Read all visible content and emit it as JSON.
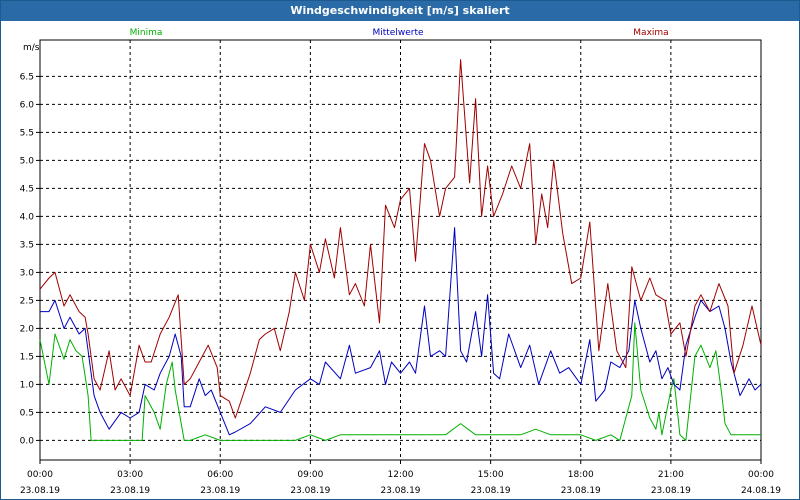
{
  "window": {
    "title": "Windgeschwindigkeit [m/s] skaliert"
  },
  "colors": {
    "minima": "#00b000",
    "mittelwerte": "#0000c0",
    "maxima": "#a00000",
    "grid": "#000000"
  },
  "chart_data": {
    "type": "line",
    "title": "Windgeschwindigkeit [m/s] skaliert",
    "ylabel": "m/s",
    "ylim": [
      -0.35,
      7.15
    ],
    "yticks": [
      0.0,
      0.5,
      1.0,
      1.5,
      2.0,
      2.5,
      3.0,
      3.5,
      4.0,
      4.5,
      5.0,
      5.5,
      6.0,
      6.5
    ],
    "ytick_labels": [
      "0.0",
      "0.5",
      "1.0",
      "1.5",
      "2.0",
      "2.5",
      "3.0",
      "3.5",
      "4.0",
      "4.5",
      "5.0",
      "5.5",
      "6.0",
      "6.5"
    ],
    "xlim": [
      0,
      24
    ],
    "xticks": [
      0,
      3,
      6,
      9,
      12,
      15,
      18,
      21,
      24
    ],
    "xtick_times": [
      "00:00",
      "03:00",
      "06:00",
      "09:00",
      "12:00",
      "15:00",
      "18:00",
      "21:00",
      "00:00"
    ],
    "xtick_dates": [
      "23.08.19",
      "23.08.19",
      "23.08.19",
      "23.08.19",
      "23.08.19",
      "23.08.19",
      "23.08.19",
      "23.08.19",
      "24.08.19"
    ],
    "grid": true,
    "legend_position": "top",
    "series": [
      {
        "name": "Minima",
        "x": [
          0,
          0.3,
          0.5,
          0.8,
          1.0,
          1.2,
          1.4,
          1.6,
          1.7,
          1.8,
          2.0,
          2.5,
          3.0,
          3.4,
          3.5,
          3.8,
          4.0,
          4.2,
          4.4,
          4.5,
          4.8,
          5.0,
          5.5,
          6.0,
          6.2,
          7.0,
          7.5,
          8.0,
          8.5,
          9.0,
          9.5,
          10.0,
          11.0,
          12.0,
          13.0,
          13.5,
          14.0,
          14.5,
          15.0,
          16.0,
          16.5,
          17.0,
          18.0,
          18.5,
          19.0,
          19.3,
          19.7,
          19.8,
          20.0,
          20.3,
          20.5,
          20.6,
          20.7,
          21.0,
          21.1,
          21.2,
          21.3,
          21.5,
          21.8,
          22.0,
          22.3,
          22.5,
          22.7,
          22.8,
          23.0,
          24.0
        ],
        "values": [
          1.8,
          1.0,
          1.9,
          1.45,
          1.8,
          1.6,
          1.5,
          0.8,
          0.0,
          0.0,
          0.0,
          0.0,
          0.0,
          0.0,
          0.8,
          0.5,
          0.2,
          1.0,
          1.4,
          0.9,
          0.0,
          0.0,
          0.1,
          0.0,
          0.0,
          0.0,
          0.0,
          0.0,
          0.0,
          0.1,
          0.0,
          0.1,
          0.1,
          0.1,
          0.1,
          0.1,
          0.3,
          0.1,
          0.1,
          0.1,
          0.2,
          0.1,
          0.1,
          0.0,
          0.1,
          0.0,
          0.8,
          2.1,
          0.9,
          0.4,
          0.2,
          0.5,
          0.1,
          0.9,
          1.1,
          0.6,
          0.1,
          0.0,
          1.5,
          1.7,
          1.3,
          1.6,
          0.8,
          0.3,
          0.1,
          0.1
        ]
      },
      {
        "name": "Mittelwerte",
        "x": [
          0,
          0.3,
          0.5,
          0.8,
          1.0,
          1.3,
          1.5,
          1.6,
          1.8,
          2.0,
          2.3,
          2.7,
          3.0,
          3.3,
          3.5,
          3.8,
          4.0,
          4.3,
          4.5,
          4.7,
          4.8,
          5.0,
          5.3,
          5.5,
          5.7,
          6.0,
          6.3,
          6.5,
          7.0,
          7.5,
          8.0,
          8.5,
          9.0,
          9.3,
          9.5,
          10.0,
          10.3,
          10.5,
          11.0,
          11.3,
          11.5,
          11.7,
          12.0,
          12.3,
          12.5,
          12.8,
          13.0,
          13.3,
          13.5,
          13.8,
          14.0,
          14.2,
          14.5,
          14.7,
          14.9,
          15.1,
          15.3,
          15.6,
          16.0,
          16.3,
          16.6,
          17.0,
          17.3,
          17.6,
          18.0,
          18.3,
          18.5,
          18.8,
          19.0,
          19.3,
          19.6,
          19.8,
          20.0,
          20.3,
          20.5,
          20.7,
          20.9,
          21.1,
          21.3,
          21.5,
          21.8,
          22.0,
          22.3,
          22.6,
          22.8,
          23.0,
          23.3,
          23.6,
          23.8,
          24.0
        ],
        "values": [
          2.3,
          2.3,
          2.5,
          2.0,
          2.2,
          1.9,
          2.0,
          1.6,
          0.8,
          0.5,
          0.2,
          0.5,
          0.4,
          0.5,
          1.0,
          0.9,
          1.2,
          1.5,
          1.9,
          1.5,
          0.6,
          0.6,
          1.1,
          0.8,
          0.9,
          0.5,
          0.1,
          0.15,
          0.3,
          0.6,
          0.5,
          0.9,
          1.1,
          1.0,
          1.4,
          1.1,
          1.7,
          1.2,
          1.3,
          1.6,
          1.0,
          1.4,
          1.2,
          1.4,
          1.2,
          2.4,
          1.5,
          1.6,
          1.5,
          3.8,
          1.6,
          1.4,
          2.3,
          1.5,
          2.6,
          1.2,
          1.1,
          1.9,
          1.3,
          1.7,
          1.0,
          1.6,
          1.2,
          1.3,
          1.0,
          1.8,
          0.7,
          0.9,
          1.4,
          1.3,
          1.6,
          2.5,
          2.0,
          1.4,
          1.6,
          1.1,
          1.3,
          1.0,
          0.9,
          1.7,
          2.2,
          2.5,
          2.3,
          2.4,
          2.0,
          1.4,
          0.8,
          1.1,
          0.9,
          1.0
        ]
      },
      {
        "name": "Maxima",
        "x": [
          0,
          0.3,
          0.5,
          0.8,
          1.0,
          1.3,
          1.5,
          1.6,
          1.8,
          2.0,
          2.3,
          2.5,
          2.7,
          3.0,
          3.3,
          3.5,
          3.7,
          4.0,
          4.3,
          4.6,
          4.8,
          5.0,
          5.3,
          5.6,
          5.9,
          6.0,
          6.3,
          6.5,
          7.0,
          7.3,
          7.5,
          7.8,
          8.0,
          8.3,
          8.5,
          8.8,
          9.0,
          9.3,
          9.5,
          9.8,
          10.0,
          10.3,
          10.5,
          10.8,
          11.0,
          11.3,
          11.5,
          11.8,
          12.0,
          12.3,
          12.5,
          12.8,
          13.0,
          13.3,
          13.5,
          13.8,
          14.0,
          14.3,
          14.5,
          14.7,
          14.9,
          15.1,
          15.4,
          15.7,
          16.0,
          16.3,
          16.5,
          16.7,
          16.9,
          17.1,
          17.4,
          17.7,
          18.0,
          18.3,
          18.6,
          18.9,
          19.2,
          19.5,
          19.7,
          20.0,
          20.3,
          20.5,
          20.8,
          21.0,
          21.3,
          21.5,
          21.8,
          22.0,
          22.3,
          22.6,
          22.9,
          23.1,
          23.4,
          23.7,
          24.0
        ],
        "values": [
          2.7,
          2.9,
          3.0,
          2.4,
          2.6,
          2.3,
          2.2,
          1.9,
          1.1,
          0.9,
          1.6,
          0.9,
          1.1,
          0.8,
          1.7,
          1.4,
          1.4,
          1.9,
          2.2,
          2.6,
          1.0,
          1.1,
          1.4,
          1.7,
          1.3,
          0.8,
          0.7,
          0.4,
          1.2,
          1.8,
          1.9,
          2.0,
          1.6,
          2.3,
          3.0,
          2.5,
          3.5,
          3.0,
          3.6,
          2.9,
          3.8,
          2.6,
          2.8,
          2.4,
          3.5,
          2.1,
          4.2,
          3.8,
          4.3,
          4.5,
          3.2,
          5.3,
          5.0,
          4.0,
          4.5,
          4.7,
          6.8,
          4.6,
          6.1,
          4.0,
          4.9,
          4.0,
          4.4,
          4.9,
          4.5,
          5.3,
          3.5,
          4.4,
          3.8,
          5.0,
          3.7,
          2.8,
          2.9,
          3.9,
          1.6,
          2.8,
          1.6,
          1.3,
          3.1,
          2.5,
          2.9,
          2.6,
          2.5,
          1.9,
          2.1,
          1.5,
          2.4,
          2.6,
          2.3,
          2.8,
          2.4,
          1.2,
          1.7,
          2.4,
          1.7
        ]
      }
    ]
  }
}
